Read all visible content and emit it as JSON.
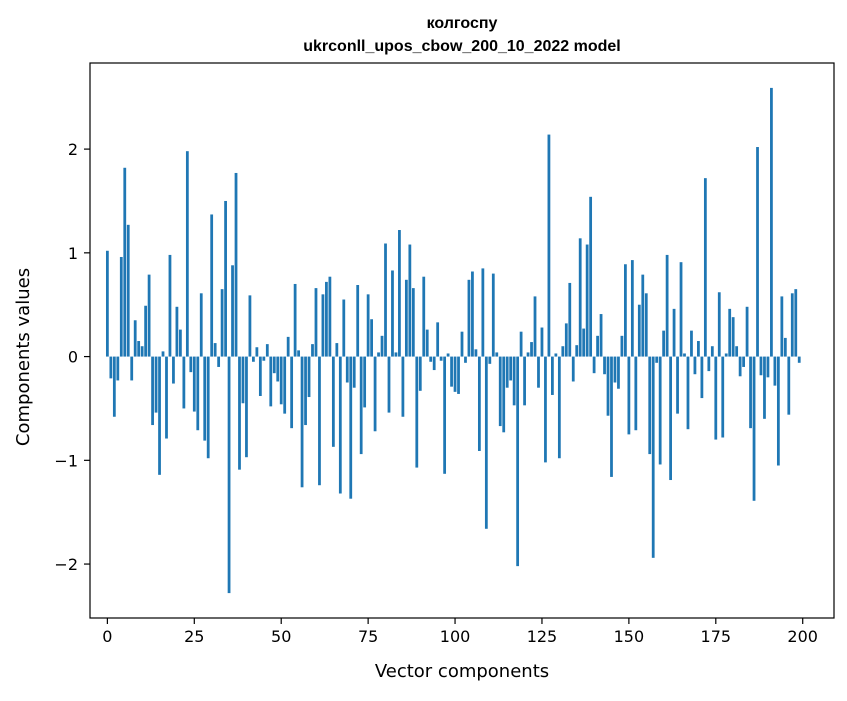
{
  "chart_data": {
    "type": "bar",
    "title": [
      "колгоспу",
      "ukrconll_upos_cbow_200_10_2022 model"
    ],
    "xlabel": "Vector components",
    "ylabel": "Components values",
    "xlim": [
      -5,
      209
    ],
    "ylim": [
      -2.52,
      2.83
    ],
    "xticks": [
      0,
      25,
      50,
      75,
      100,
      125,
      150,
      175,
      200
    ],
    "yticks": [
      -2,
      -1,
      0,
      1,
      2
    ],
    "ytick_labels": [
      "−2",
      "−1",
      "0",
      "1",
      "2"
    ],
    "grid": false,
    "bar_color": "#1f77b4",
    "x": [
      0,
      1,
      2,
      3,
      4,
      5,
      6,
      7,
      8,
      9,
      10,
      11,
      12,
      13,
      14,
      15,
      16,
      17,
      18,
      19,
      20,
      21,
      22,
      23,
      24,
      25,
      26,
      27,
      28,
      29,
      30,
      31,
      32,
      33,
      34,
      35,
      36,
      37,
      38,
      39,
      40,
      41,
      42,
      43,
      44,
      45,
      46,
      47,
      48,
      49,
      50,
      51,
      52,
      53,
      54,
      55,
      56,
      57,
      58,
      59,
      60,
      61,
      62,
      63,
      64,
      65,
      66,
      67,
      68,
      69,
      70,
      71,
      72,
      73,
      74,
      75,
      76,
      77,
      78,
      79,
      80,
      81,
      82,
      83,
      84,
      85,
      86,
      87,
      88,
      89,
      90,
      91,
      92,
      93,
      94,
      95,
      96,
      97,
      98,
      99,
      100,
      101,
      102,
      103,
      104,
      105,
      106,
      107,
      108,
      109,
      110,
      111,
      112,
      113,
      114,
      115,
      116,
      117,
      118,
      119,
      120,
      121,
      122,
      123,
      124,
      125,
      126,
      127,
      128,
      129,
      130,
      131,
      132,
      133,
      134,
      135,
      136,
      137,
      138,
      139,
      140,
      141,
      142,
      143,
      144,
      145,
      146,
      147,
      148,
      149,
      150,
      151,
      152,
      153,
      154,
      155,
      156,
      157,
      158,
      159,
      160,
      161,
      162,
      163,
      164,
      165,
      166,
      167,
      168,
      169,
      170,
      171,
      172,
      173,
      174,
      175,
      176,
      177,
      178,
      179,
      180,
      181,
      182,
      183,
      184,
      185,
      186,
      187,
      188,
      189,
      190,
      191,
      192,
      193,
      194,
      195,
      196,
      197,
      198,
      199
    ],
    "values": [
      1.02,
      -0.21,
      -0.58,
      -0.23,
      0.96,
      1.82,
      1.27,
      -0.23,
      0.35,
      0.15,
      0.1,
      0.49,
      0.79,
      -0.66,
      -0.54,
      -1.14,
      0.05,
      -0.79,
      0.98,
      -0.26,
      0.48,
      0.26,
      -0.5,
      1.98,
      -0.15,
      -0.53,
      -0.71,
      0.61,
      -0.81,
      -0.98,
      1.37,
      0.13,
      -0.1,
      0.65,
      1.5,
      -2.28,
      0.88,
      1.77,
      -1.09,
      -0.45,
      -0.97,
      0.59,
      -0.05,
      0.09,
      -0.38,
      -0.04,
      0.12,
      -0.48,
      -0.16,
      -0.24,
      -0.46,
      -0.55,
      0.19,
      -0.69,
      0.7,
      0.06,
      -1.26,
      -0.66,
      -0.39,
      0.12,
      0.66,
      -1.24,
      0.6,
      0.72,
      0.77,
      -0.87,
      0.13,
      -1.32,
      0.55,
      -0.25,
      -1.37,
      -0.3,
      0.69,
      -0.94,
      -0.49,
      0.6,
      0.36,
      -0.72,
      0.04,
      0.2,
      1.09,
      -0.54,
      0.83,
      0.04,
      1.22,
      -0.58,
      0.74,
      1.08,
      0.66,
      -1.07,
      -0.33,
      0.77,
      0.26,
      -0.05,
      -0.13,
      0.33,
      -0.04,
      -1.13,
      0.03,
      -0.29,
      -0.34,
      -0.36,
      0.24,
      -0.06,
      0.74,
      0.82,
      0.07,
      -0.91,
      0.85,
      -1.66,
      -0.07,
      0.8,
      0.04,
      -0.67,
      -0.73,
      -0.3,
      -0.23,
      -0.47,
      -2.02,
      0.24,
      -0.47,
      0.04,
      0.14,
      0.58,
      -0.3,
      0.28,
      -1.02,
      2.14,
      -0.37,
      0.03,
      -0.98,
      0.1,
      0.32,
      0.71,
      -0.24,
      0.11,
      1.14,
      0.27,
      1.08,
      1.54,
      -0.16,
      0.2,
      0.41,
      -0.17,
      -0.57,
      -1.16,
      -0.25,
      -0.31,
      0.2,
      0.89,
      -0.75,
      0.93,
      -0.71,
      0.5,
      0.79,
      0.61,
      -0.94,
      -1.94,
      -0.06,
      -1.04,
      0.25,
      0.98,
      -1.19,
      0.46,
      -0.55,
      0.91,
      0.03,
      -0.7,
      0.25,
      -0.17,
      0.15,
      -0.4,
      1.72,
      -0.14,
      0.1,
      -0.8,
      0.62,
      -0.78,
      0.03,
      0.46,
      0.38,
      0.1,
      -0.19,
      -0.1,
      0.48,
      -0.69,
      -1.39,
      2.02,
      -0.18,
      -0.6,
      -0.2,
      2.59,
      -0.28,
      -1.05,
      0.58,
      0.18,
      -0.56,
      0.61,
      0.65,
      -0.06
    ]
  }
}
